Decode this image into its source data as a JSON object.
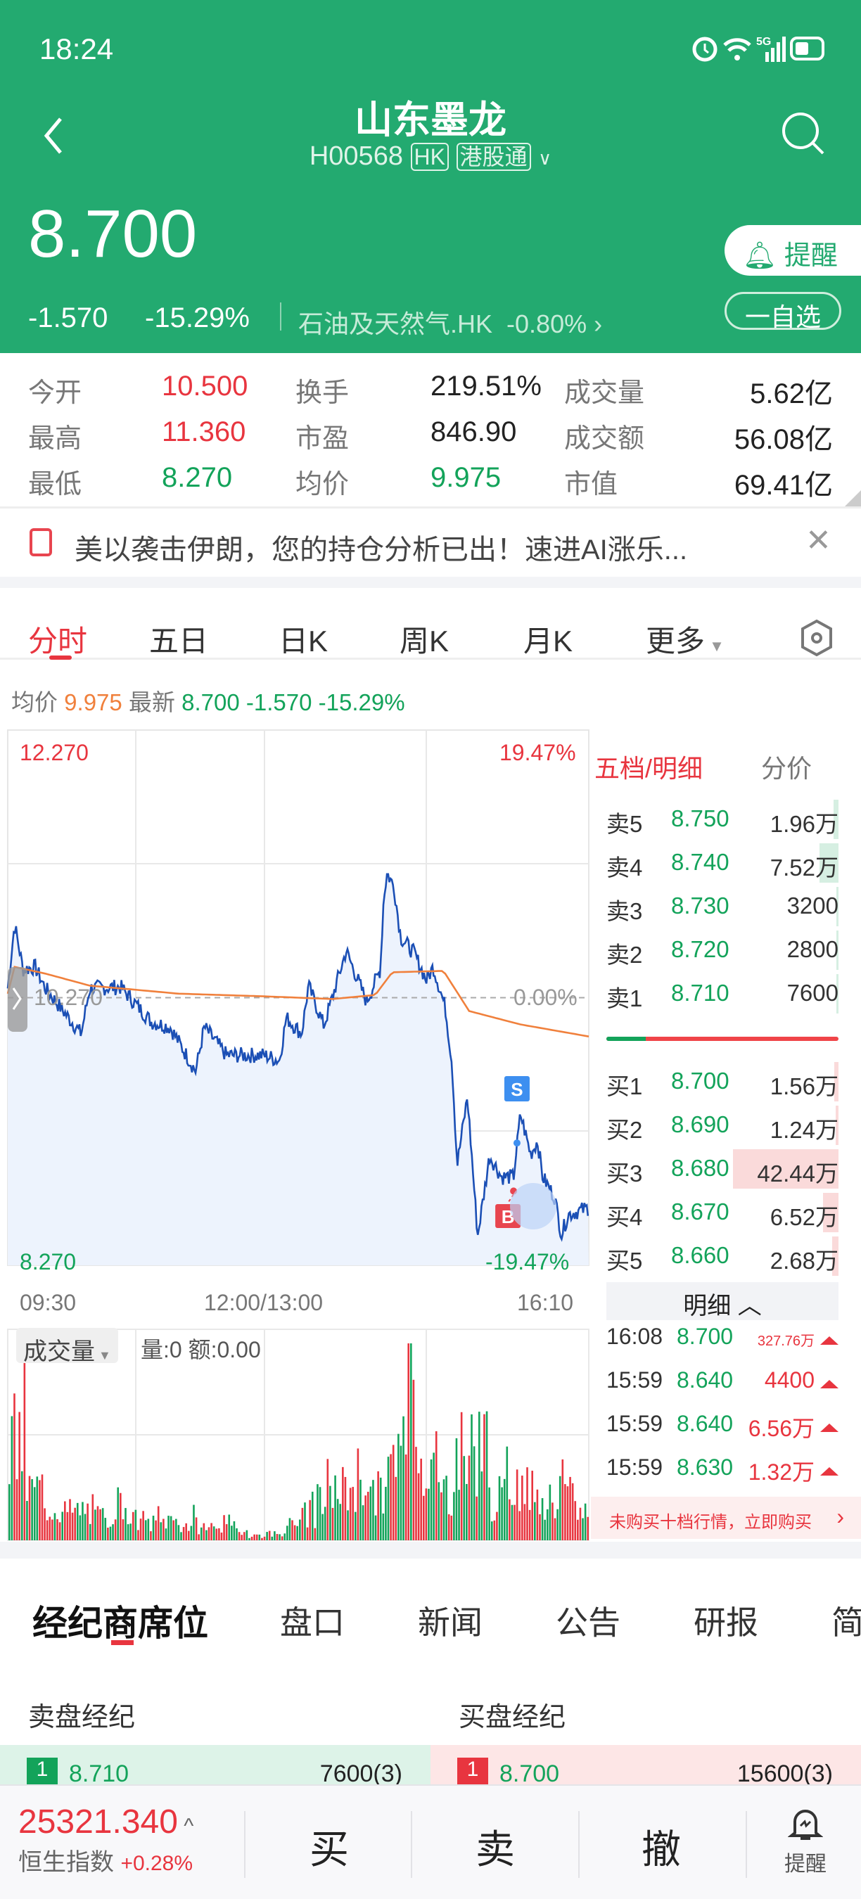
{
  "status": {
    "time": "18:24",
    "network": "5G",
    "icons": [
      "alarm-icon",
      "wifi-icon",
      "signal-icon",
      "battery-icon"
    ]
  },
  "header": {
    "title": "山东墨龙",
    "code": "H00568",
    "badge_market": "HK",
    "badge_connect": "港股通",
    "price": "8.700",
    "change": "-1.570",
    "change_pct": "-15.29%",
    "sector": "石油及天然气.HK",
    "sector_pct": "-0.80%",
    "alert_label": "提醒",
    "watch_label": "一自选"
  },
  "stats": [
    [
      {
        "label": "今开",
        "value": "10.500",
        "color": "red"
      },
      {
        "label": "换手",
        "value": "219.51%",
        "color": "dark"
      },
      {
        "label": "成交量",
        "value": "5.62亿",
        "color": "dark"
      }
    ],
    [
      {
        "label": "最高",
        "value": "11.360",
        "color": "red"
      },
      {
        "label": "市盈",
        "value": "846.90",
        "color": "dark"
      },
      {
        "label": "成交额",
        "value": "56.08亿",
        "color": "dark"
      }
    ],
    [
      {
        "label": "最低",
        "value": "8.270",
        "color": "grn"
      },
      {
        "label": "均价",
        "value": "9.975",
        "color": "grn"
      },
      {
        "label": "市值",
        "value": "69.41亿",
        "color": "dark"
      }
    ]
  ],
  "banner": {
    "text": "美以袭击伊朗，您的持仓分析已出！速进AI涨乐..."
  },
  "chart_tabs": [
    "分时",
    "五日",
    "日K",
    "周K",
    "月K",
    "更多"
  ],
  "info_line": {
    "avg_label": "均价",
    "avg": "9.975",
    "last_label": "最新",
    "last": "8.700",
    "chg": "-1.570",
    "pct": "-15.29%"
  },
  "chart_data": {
    "type": "line",
    "y_top": "12.270",
    "y_bottom": "8.270",
    "y_mid": "10.270",
    "pct_top": "19.47%",
    "pct_mid": "0.00%",
    "pct_bottom": "-19.47%",
    "x_labels": [
      "09:30",
      "12:00/13:00",
      "16:10"
    ],
    "ylim": [
      8.27,
      12.27
    ],
    "prev_close": 10.27,
    "session_minutes": 340,
    "price": [
      [
        0,
        10.34
      ],
      [
        4,
        10.82
      ],
      [
        9,
        10.48
      ],
      [
        16,
        10.5
      ],
      [
        22,
        10.34
      ],
      [
        43,
        10.0
      ],
      [
        48,
        10.34
      ],
      [
        66,
        10.35
      ],
      [
        84,
        10.09
      ],
      [
        95,
        10.05
      ],
      [
        110,
        9.72
      ],
      [
        115,
        10.05
      ],
      [
        128,
        9.84
      ],
      [
        150,
        9.84
      ],
      [
        159,
        9.8
      ],
      [
        163,
        10.12
      ],
      [
        172,
        10.0
      ],
      [
        176,
        10.36
      ],
      [
        185,
        10.06
      ],
      [
        198,
        10.62
      ],
      [
        210,
        10.24
      ],
      [
        218,
        10.48
      ],
      [
        220,
        11.02
      ],
      [
        222,
        11.2
      ],
      [
        226,
        11.1
      ],
      [
        230,
        10.72
      ],
      [
        238,
        10.6
      ],
      [
        245,
        10.4
      ],
      [
        249,
        10.5
      ],
      [
        256,
        10.2
      ],
      [
        260,
        9.78
      ],
      [
        263,
        9.02
      ],
      [
        269,
        9.53
      ],
      [
        275,
        8.49
      ],
      [
        282,
        9.09
      ],
      [
        289,
        8.93
      ],
      [
        296,
        8.93
      ],
      [
        300,
        9.4
      ],
      [
        306,
        9.1
      ],
      [
        310,
        9.2
      ],
      [
        313,
        8.93
      ],
      [
        320,
        8.78
      ],
      [
        324,
        8.5
      ],
      [
        328,
        8.65
      ],
      [
        340,
        8.7
      ]
    ],
    "avg": [
      [
        0,
        10.3
      ],
      [
        4,
        10.5
      ],
      [
        22,
        10.45
      ],
      [
        48,
        10.36
      ],
      [
        100,
        10.3
      ],
      [
        150,
        10.28
      ],
      [
        190,
        10.26
      ],
      [
        215,
        10.29
      ],
      [
        225,
        10.46
      ],
      [
        255,
        10.47
      ],
      [
        270,
        10.17
      ],
      [
        300,
        10.07
      ],
      [
        340,
        9.98
      ]
    ],
    "markers": [
      {
        "label": "S",
        "color": "#3d8ff0"
      },
      {
        "label": "B",
        "color": "#e8454f"
      }
    ],
    "volume_label": "成交量",
    "volume_info": "量:0 额:0.00",
    "volume_profile": [
      58,
      30,
      20,
      17,
      18,
      14,
      22,
      12,
      10,
      12,
      9,
      8,
      10,
      6,
      3,
      4,
      9,
      15,
      22,
      30,
      38,
      27,
      44,
      88,
      48,
      30,
      52,
      58,
      25,
      38,
      30,
      22,
      25,
      18
    ]
  },
  "orderbook": {
    "title": "五档/明细",
    "alt": "分价",
    "asks": [
      {
        "label": "卖5",
        "price": "8.750",
        "vol": "1.96万",
        "fill": 0.05
      },
      {
        "label": "卖4",
        "price": "8.740",
        "vol": "7.52万",
        "fill": 0.18
      },
      {
        "label": "卖3",
        "price": "8.730",
        "vol": "3200",
        "fill": 0.01
      },
      {
        "label": "卖2",
        "price": "8.720",
        "vol": "2800",
        "fill": 0.01
      },
      {
        "label": "卖1",
        "price": "8.710",
        "vol": "7600",
        "fill": 0.02
      }
    ],
    "bids": [
      {
        "label": "买1",
        "price": "8.700",
        "vol": "1.56万",
        "fill": 0.04
      },
      {
        "label": "买2",
        "price": "8.690",
        "vol": "1.24万",
        "fill": 0.03
      },
      {
        "label": "买3",
        "price": "8.680",
        "vol": "42.44万",
        "fill": 1.0
      },
      {
        "label": "买4",
        "price": "8.670",
        "vol": "6.52万",
        "fill": 0.15
      },
      {
        "label": "买5",
        "price": "8.660",
        "vol": "2.68万",
        "fill": 0.06
      }
    ],
    "ratio_buy_side": 0.17,
    "detail_label": "明细",
    "trades": [
      {
        "time": "16:08",
        "price": "8.700",
        "vol": "327.76万"
      },
      {
        "time": "15:59",
        "price": "8.640",
        "vol": "4400"
      },
      {
        "time": "15:59",
        "price": "8.640",
        "vol": "6.56万"
      },
      {
        "time": "15:59",
        "price": "8.630",
        "vol": "1.32万"
      }
    ],
    "promo": "未购买十档行情，立即购买"
  },
  "bottom_tabs": [
    "经纪商席位",
    "盘口",
    "新闻",
    "公告",
    "研报",
    "简"
  ],
  "brokers": {
    "sell_title": "卖盘经纪",
    "buy_title": "买盘经纪",
    "sell": {
      "rank": "1",
      "price": "8.710",
      "vol": "7600(3)"
    },
    "buy": {
      "rank": "1",
      "price": "8.700",
      "vol": "15600(3)"
    }
  },
  "footer": {
    "index_value": "25321.340",
    "index_name": "恒生指数",
    "index_pct": "+0.28%",
    "buy": "买",
    "sell": "卖",
    "cancel": "撤",
    "alert": "提醒"
  }
}
